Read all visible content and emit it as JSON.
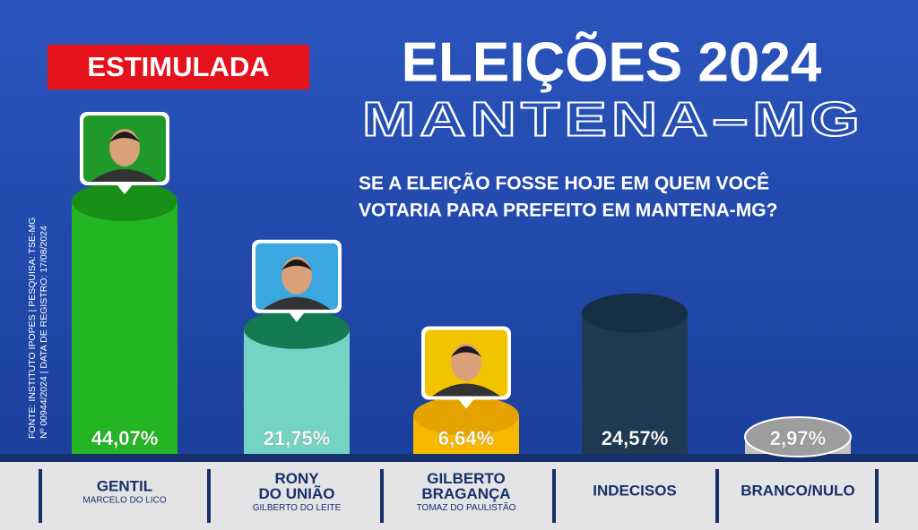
{
  "chart_data": {
    "type": "bar",
    "badge": "ESTIMULADA",
    "title": "ELEIÇÕES 2024",
    "subtitle": "MANTENA–MG",
    "question": [
      "SE A ELEIÇÃO FOSSE HOJE EM QUEM VOCÊ",
      "VOTARIA PARA PREFEITO EM MANTENA-MG?"
    ],
    "source": [
      "FONTE: INSTITUTO IPOPES | PESQUISA: TSE-MG",
      "Nº 00944/2024 | DATA DE REGISTRO: 17/08/2024"
    ],
    "categories": [
      [
        "GENTIL"
      ],
      [
        "RONY",
        "DO UNIÃO"
      ],
      [
        "GILBERTO",
        "BRAGANÇA"
      ],
      [
        "INDECISOS"
      ],
      [
        "BRANCO/NULO"
      ]
    ],
    "sublabels": [
      "MARCELO DO LICO",
      "GILBERTO DO LEITE",
      "TOMAZ DO PAULISTÃO",
      null,
      null
    ],
    "values": [
      44.07,
      21.75,
      6.64,
      24.57,
      2.97
    ],
    "value_labels": [
      "44,07%",
      "21,75%",
      "6,64%",
      "24,57%",
      "2,97%"
    ],
    "colors": [
      "#23b523",
      "#74d3c4",
      "#f7b900",
      "#1d3a52",
      "#c4c4c4"
    ],
    "cap_colors": [
      "#189018",
      "#137a52",
      "#e5a300",
      "#162f44",
      "#9d9d9d"
    ]
  }
}
